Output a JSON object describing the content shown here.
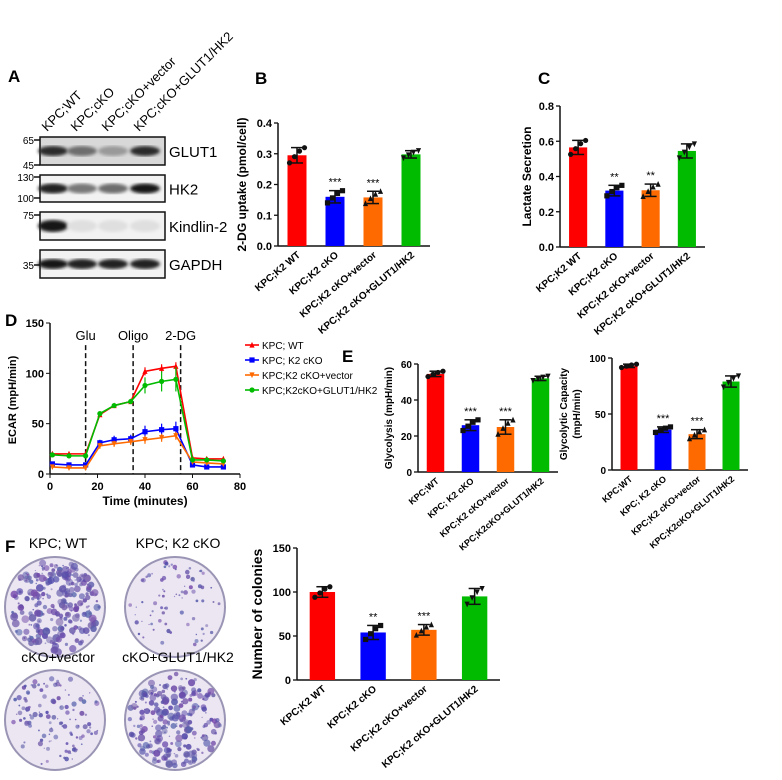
{
  "panel_labels": [
    "A",
    "B",
    "C",
    "D",
    "E",
    "F"
  ],
  "colors": {
    "wt": "#ff0000",
    "cko": "#0000ff",
    "vector": "#ff6a00",
    "rescue": "#00bb00"
  },
  "western_blot": {
    "lanes": [
      "KPC;WT",
      "KPC;cKO",
      "KPC;cKO+vector",
      "KPC;cKO+GLUT1/HK2"
    ],
    "blots": [
      {
        "name": "GLUT1",
        "markers": [
          "65",
          "45"
        ],
        "band_intensity": [
          0.85,
          0.55,
          0.35,
          0.85
        ]
      },
      {
        "name": "HK2",
        "markers": [
          "130",
          "100"
        ],
        "band_intensity": [
          0.9,
          0.5,
          0.55,
          0.95
        ]
      },
      {
        "name": "Kindlin-2",
        "markers": [
          "75"
        ],
        "band_intensity": [
          0.95,
          0.03,
          0.03,
          0.03
        ]
      },
      {
        "name": "GAPDH",
        "markers": [
          "35"
        ],
        "band_intensity": [
          0.95,
          0.9,
          0.9,
          0.9
        ]
      }
    ]
  },
  "plates": {
    "labels": [
      "KPC; WT",
      "KPC; K2 cKO",
      "cKO+vector",
      "cKO+GLUT1/HK2"
    ],
    "colony_density": [
      1.0,
      0.3,
      0.45,
      0.9
    ]
  },
  "chart_data": [
    {
      "panel": "B",
      "type": "bar",
      "ylabel": "2-DG uptake (pmol/cell)",
      "ylim": [
        0,
        0.4
      ],
      "yticks": [
        "0.0",
        "0.1",
        "0.2",
        "0.3",
        "0.4"
      ],
      "categories": [
        "KPC;K2 WT",
        "KPC;K2 cKO",
        "KPC;K2 cKO+vector",
        "KPC;K2 cKO+GLUT1/HK2"
      ],
      "values": [
        0.295,
        0.16,
        0.158,
        0.298
      ],
      "errors": [
        0.025,
        0.02,
        0.02,
        0.012
      ],
      "significance": [
        "",
        "***",
        "***",
        ""
      ],
      "markers": [
        "circle",
        "square",
        "triangle",
        "triangle-down"
      ]
    },
    {
      "panel": "C",
      "type": "bar",
      "ylabel": "Lactate  Secretion",
      "ylim": [
        0,
        0.8
      ],
      "yticks": [
        "0.0",
        "0.2",
        "0.4",
        "0.6",
        "0.8"
      ],
      "categories": [
        "KPC;K2 WT",
        "KPC;K2 cKO",
        "KPC;K2 cKO+vector",
        "KPC;K2 cKO+GLUT1/HK2"
      ],
      "values": [
        0.565,
        0.32,
        0.322,
        0.545
      ],
      "errors": [
        0.04,
        0.03,
        0.035,
        0.04
      ],
      "significance": [
        "",
        "**",
        "**",
        ""
      ],
      "markers": [
        "circle",
        "square",
        "triangle",
        "triangle-down"
      ]
    },
    {
      "panel": "D",
      "type": "line",
      "ylabel": "ECAR (mpH/min)",
      "xlabel": "Time (minutes)",
      "xlim": [
        0,
        80
      ],
      "ylim": [
        0,
        150
      ],
      "xticks": [
        "0",
        "20",
        "40",
        "60",
        "80"
      ],
      "yticks": [
        "0",
        "50",
        "100",
        "150"
      ],
      "annotations": [
        {
          "text": "Glu",
          "x": 15
        },
        {
          "text": "Oligo",
          "x": 35
        },
        {
          "text": "2-DG",
          "x": 55
        }
      ],
      "legend": "right",
      "x": [
        1,
        8,
        15,
        21,
        27,
        34,
        40,
        47,
        53,
        60,
        66,
        73
      ],
      "series": [
        {
          "name": "KPC; WT",
          "values": [
            20,
            20,
            20,
            59,
            68,
            72,
            102,
            105,
            107,
            16,
            15,
            15
          ],
          "errors": [
            2,
            2,
            2,
            2,
            2,
            2,
            4,
            4,
            4,
            2,
            2,
            2
          ],
          "marker": "triangle"
        },
        {
          "name": "KPC; K2 cKO",
          "values": [
            10,
            9,
            9,
            31,
            34,
            35,
            42,
            44,
            45,
            9,
            7,
            7
          ],
          "errors": [
            2,
            2,
            2,
            3,
            4,
            4,
            6,
            6,
            7,
            2,
            1,
            1
          ],
          "marker": "square"
        },
        {
          "name": "KPC;K2 cKO+vector",
          "values": [
            7,
            6,
            6,
            28,
            30,
            32,
            34,
            36,
            38,
            12,
            11,
            10
          ],
          "errors": [
            1,
            1,
            1,
            3,
            3,
            3,
            4,
            4,
            4,
            2,
            2,
            2
          ],
          "marker": "triangle-down"
        },
        {
          "name": "KPC;K2cKO+GLUT1/HK2",
          "values": [
            19,
            18,
            18,
            60,
            68,
            72,
            88,
            92,
            94,
            14,
            14,
            13
          ],
          "errors": [
            2,
            2,
            2,
            2,
            2,
            2,
            8,
            10,
            12,
            2,
            2,
            2
          ],
          "marker": "circle"
        }
      ]
    },
    {
      "panel": "E",
      "type": "bar",
      "ylabel": "Glycolysis (mpH/min)",
      "ylim": [
        0,
        60
      ],
      "yticks": [
        "0",
        "20",
        "40",
        "60"
      ],
      "categories": [
        "KPC;WT",
        "KPC; K2 cKO",
        "KPC;K2 cKO+vector",
        "KPC;K2cKO+GLUT1/HK2"
      ],
      "values": [
        54.5,
        26,
        25,
        52
      ],
      "errors": [
        1.5,
        3,
        4,
        1.2
      ],
      "significance": [
        "",
        "***",
        "***",
        ""
      ],
      "markers": [
        "circle",
        "square",
        "triangle",
        "triangle-down"
      ]
    },
    {
      "panel": "E",
      "type": "bar",
      "ylabel": "Glycolytic Capacity (mpH/min)",
      "ylim": [
        0,
        100
      ],
      "yticks": [
        "0",
        "50",
        "100"
      ],
      "categories": [
        "KPC;WT",
        "KPC; K2 cKO",
        "KPC;K2 cKO+vector",
        "KPC;K2cKO+GLUT1/HK2"
      ],
      "values": [
        93,
        36,
        32,
        79
      ],
      "errors": [
        1.5,
        2.5,
        4,
        5
      ],
      "significance": [
        "",
        "***",
        "***",
        ""
      ],
      "markers": [
        "circle",
        "square",
        "triangle",
        "triangle-down"
      ]
    },
    {
      "panel": "F",
      "type": "bar",
      "ylabel": "Number of colonies",
      "ylim": [
        0,
        150
      ],
      "yticks": [
        "0",
        "50",
        "100",
        "150"
      ],
      "categories": [
        "KPC;K2 WT",
        "KPC;K2 cKO",
        "KPC;K2 cKO+vector",
        "KPC;K2 cKO+GLUT1/HK2"
      ],
      "values": [
        100,
        54,
        57,
        95
      ],
      "errors": [
        6,
        8,
        6,
        9
      ],
      "significance": [
        "",
        "**",
        "***",
        ""
      ],
      "markers": [
        "circle",
        "square",
        "triangle",
        "triangle-down"
      ]
    }
  ]
}
